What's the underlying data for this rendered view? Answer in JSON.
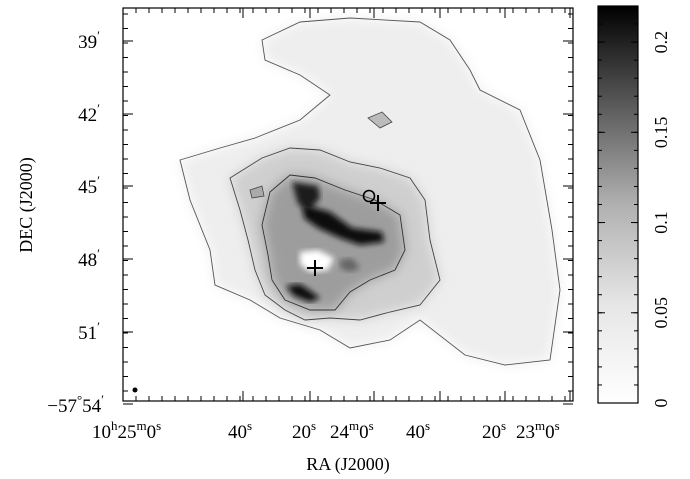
{
  "xaxis": {
    "title": "RA (J2000)",
    "ticks": [
      {
        "h": "10",
        "hs": "h",
        "m": "25",
        "ms": "m",
        "s": "0",
        "ss": "s"
      },
      {
        "s": "40",
        "ss": "s"
      },
      {
        "s": "20",
        "ss": "s"
      },
      {
        "m": "24",
        "ms": "m",
        "s": "0",
        "ss": "s"
      },
      {
        "s": "40",
        "ss": "s"
      },
      {
        "s": "20",
        "ss": "s"
      },
      {
        "m": "23",
        "ms": "m",
        "s": "0",
        "ss": "s"
      }
    ]
  },
  "yaxis": {
    "title": "DEC (J2000)",
    "ticks": [
      {
        "v": "39",
        "prime": "′"
      },
      {
        "v": "42",
        "prime": "′"
      },
      {
        "v": "45",
        "prime": "′"
      },
      {
        "v": "48",
        "prime": "′"
      },
      {
        "v": "51",
        "prime": "′"
      },
      {
        "v": "−57",
        "deg": "°",
        "v2": "54",
        "prime": "′"
      }
    ]
  },
  "colorbar": {
    "ticks": [
      "0",
      "0.05",
      "0.1",
      "0.15",
      "0.2"
    ],
    "range": [
      0,
      0.22
    ]
  },
  "markers": [
    {
      "name": "plus-marker-1",
      "symbol": "plus"
    },
    {
      "name": "plus-marker-2",
      "symbol": "plus"
    },
    {
      "name": "circle-marker",
      "symbol": "circle"
    }
  ]
}
